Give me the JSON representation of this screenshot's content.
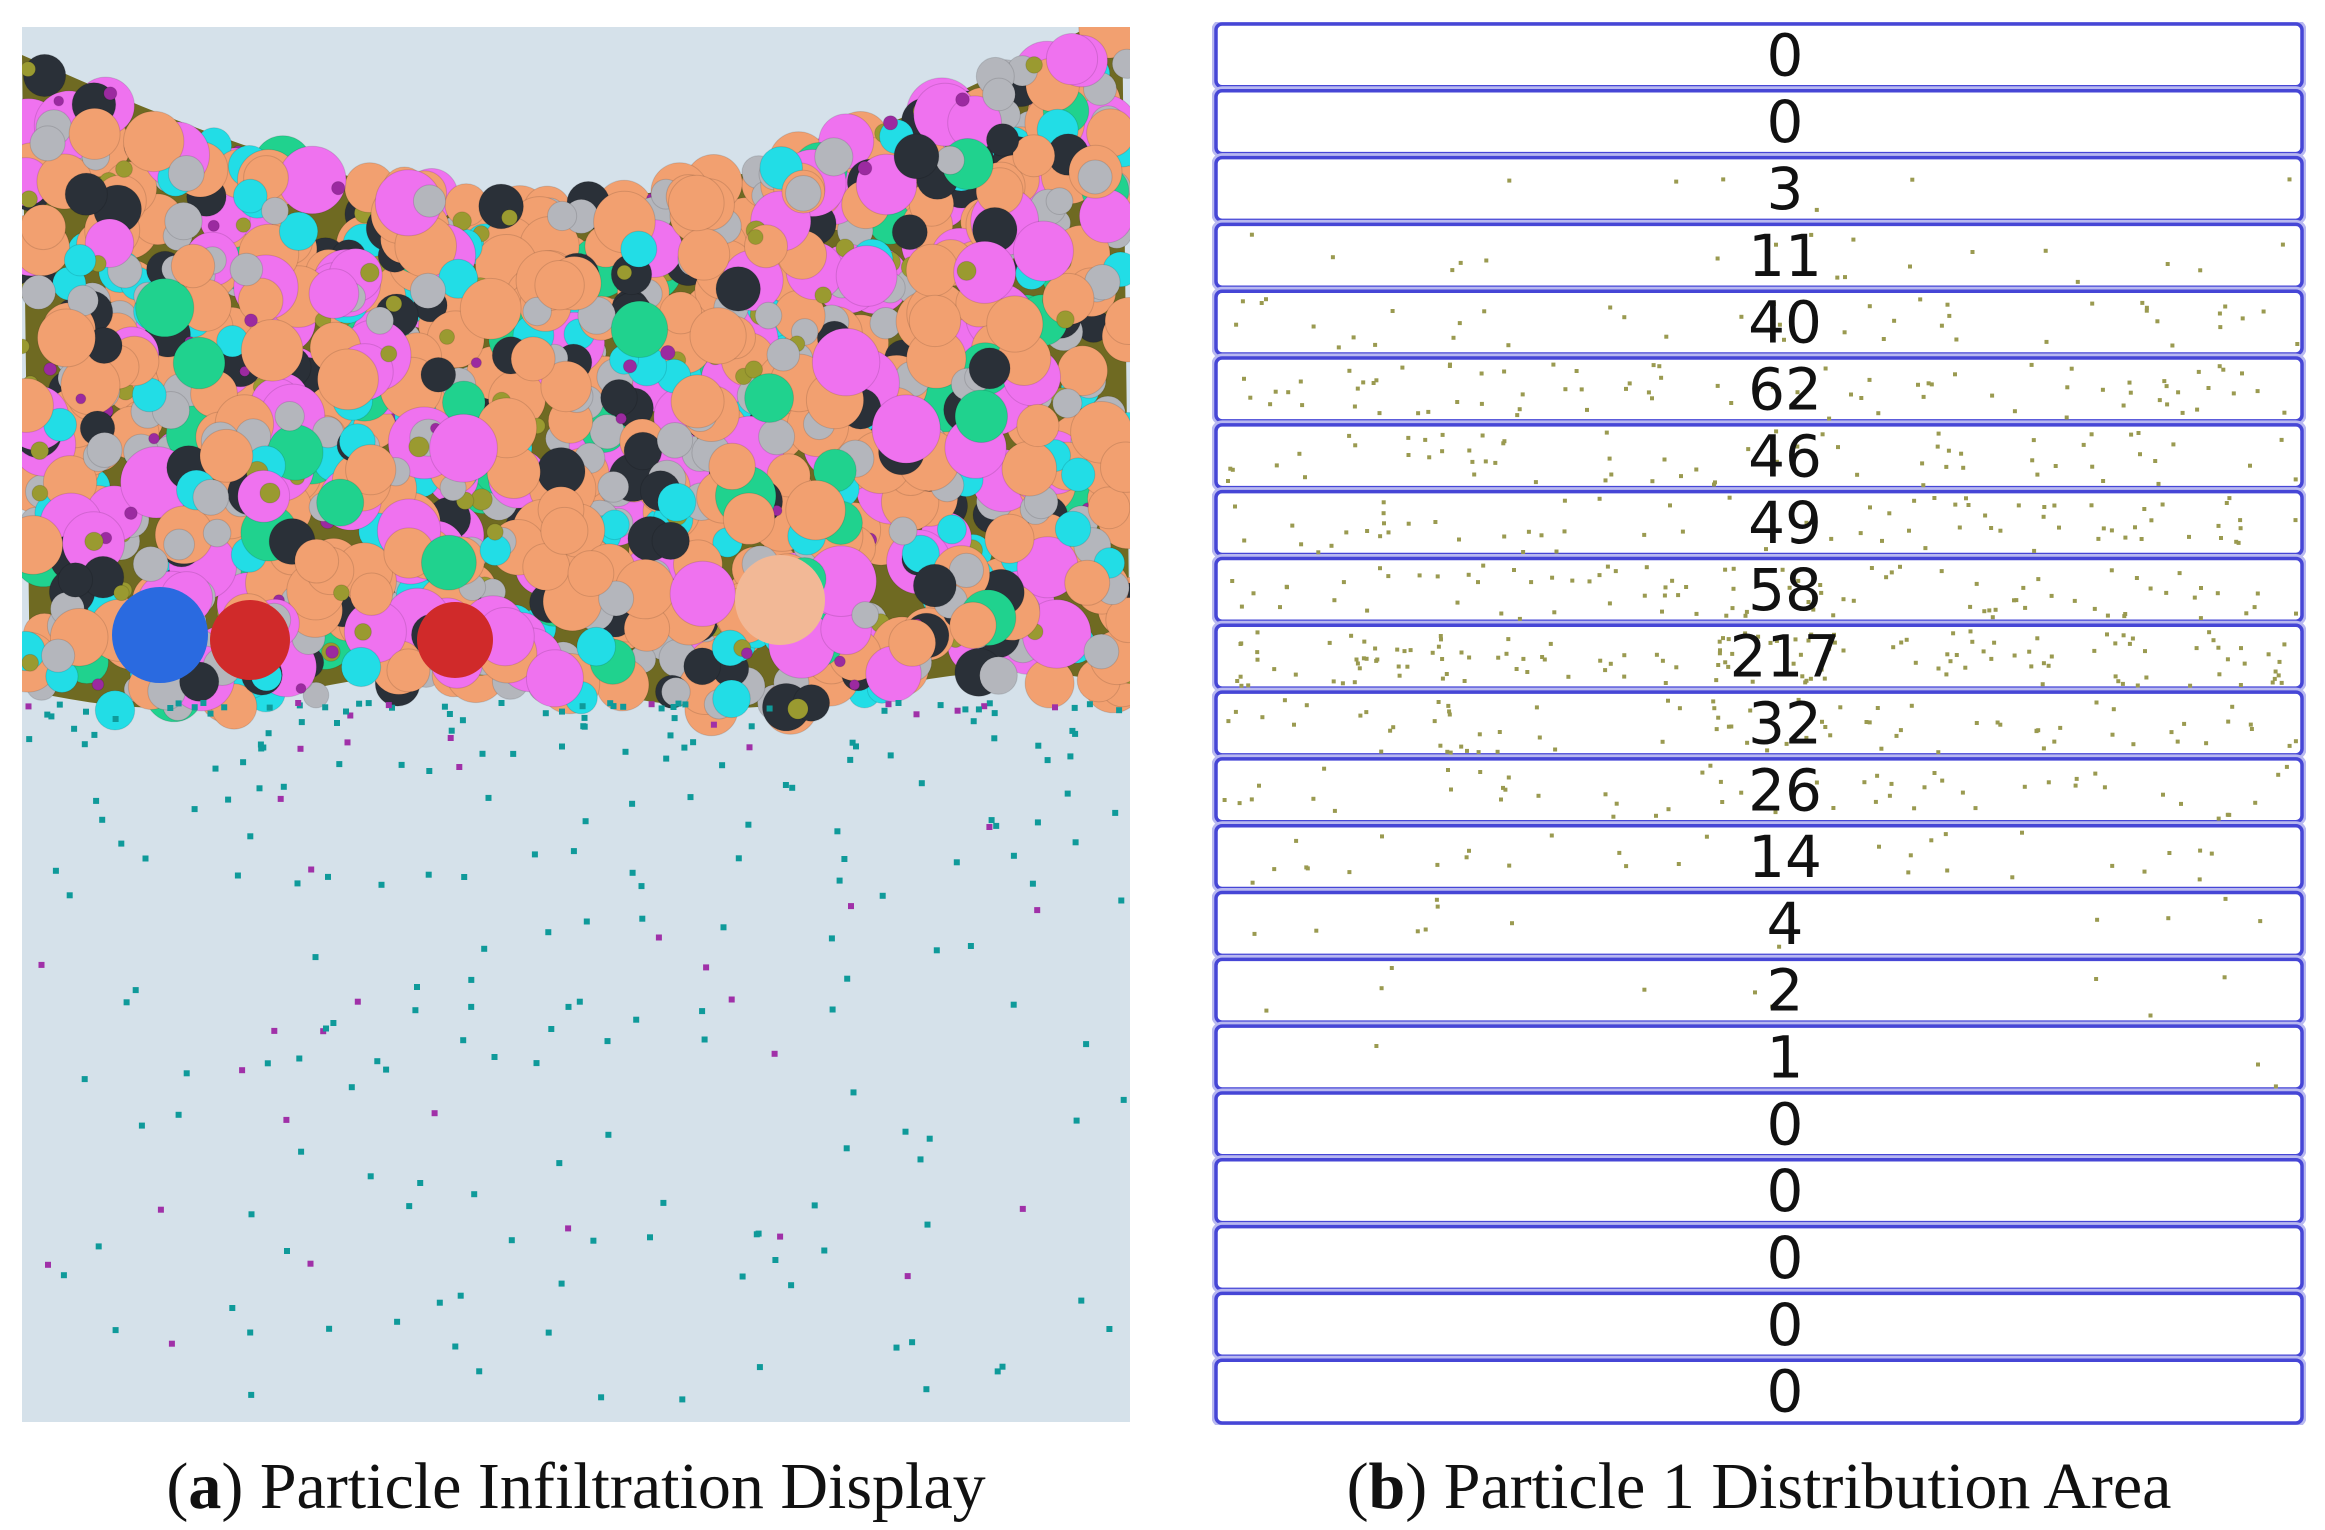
{
  "panels": [
    {
      "caption": [
        "(",
        "a",
        ") Particle Infiltration Display"
      ]
    },
    {
      "caption": [
        "(",
        "b",
        ") Particle 1 Distribution Area"
      ],
      "row_counts": [
        0,
        0,
        3,
        11,
        40,
        62,
        46,
        49,
        58,
        217,
        32,
        26,
        14,
        4,
        2,
        1,
        0,
        0,
        0,
        0,
        0
      ]
    }
  ]
}
